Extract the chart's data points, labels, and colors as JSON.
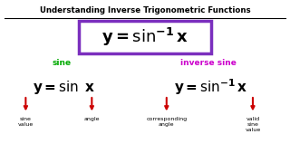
{
  "title": "Understanding Inverse Trigonometric Functions",
  "bg_color": "#ffffff",
  "title_color": "#000000",
  "box_border_color": "#7b2fbe",
  "left_label": "sine",
  "right_label": "inverse sine",
  "left_label_color": "#00aa00",
  "right_label_color": "#cc00cc",
  "formula_color": "#000000",
  "arrow_color": "#cc0000",
  "annot_color": "#000000"
}
